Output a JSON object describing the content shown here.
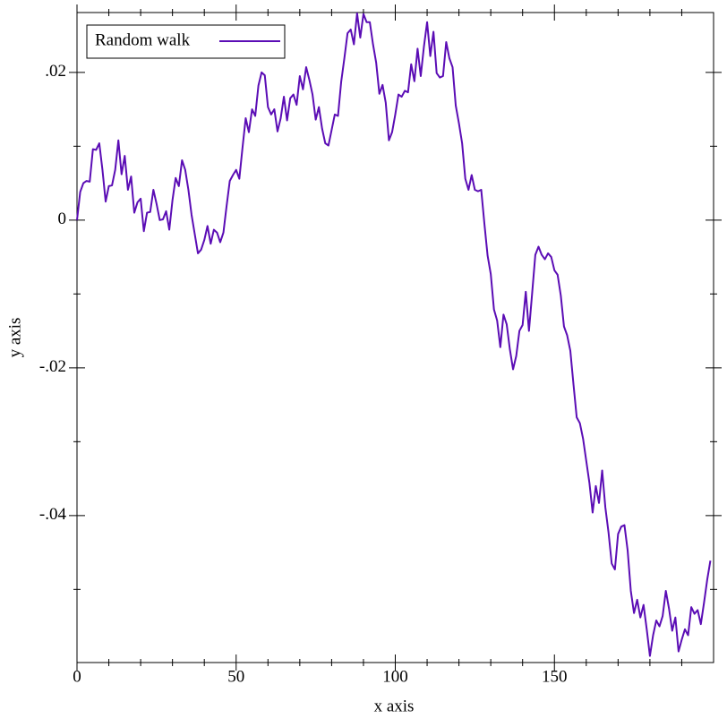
{
  "chart_data": {
    "type": "line",
    "xlabel": "x axis",
    "ylabel": "y axis",
    "legend": "top-left",
    "x": [
      0,
      1,
      2,
      3,
      4,
      5,
      6,
      7,
      8,
      9,
      10,
      11,
      12,
      13,
      14,
      15,
      16,
      17,
      18,
      19,
      20,
      21,
      22,
      23,
      24,
      25,
      26,
      27,
      28,
      29,
      30,
      31,
      32,
      33,
      34,
      35,
      36,
      37,
      38,
      39,
      40,
      41,
      42,
      43,
      44,
      45,
      46,
      47,
      48,
      49,
      50,
      51,
      52,
      53,
      54,
      55,
      56,
      57,
      58,
      59,
      60,
      61,
      62,
      63,
      64,
      65,
      66,
      67,
      68,
      69,
      70,
      71,
      72,
      73,
      74,
      75,
      76,
      77,
      78,
      79,
      80,
      81,
      82,
      83,
      84,
      85,
      86,
      87,
      88,
      89,
      90,
      91,
      92,
      93,
      94,
      95,
      96,
      97,
      98,
      99,
      100,
      101,
      102,
      103,
      104,
      105,
      106,
      107,
      108,
      109,
      110,
      111,
      112,
      113,
      114,
      115,
      116,
      117,
      118,
      119,
      120,
      121,
      122,
      123,
      124,
      125,
      126,
      127,
      128,
      129,
      130,
      131,
      132,
      133,
      134,
      135,
      136,
      137,
      138,
      139,
      140,
      141,
      142,
      143,
      144,
      145,
      146,
      147,
      148,
      149,
      150,
      151,
      152,
      153,
      154,
      155,
      156,
      157,
      158,
      159,
      160,
      161,
      162,
      163,
      164,
      165,
      166,
      167,
      168,
      169,
      170,
      171,
      172,
      173,
      174,
      175,
      176,
      177,
      178,
      179,
      180,
      181,
      182,
      183,
      184,
      185,
      186,
      187,
      188,
      189,
      190,
      191,
      192,
      193,
      194,
      195,
      196,
      197,
      198,
      199
    ],
    "series": [
      {
        "name": "Random walk",
        "color": "#5b0db5",
        "values": [
          0,
          0.0038,
          0.005,
          0.0053,
          0.0052,
          0.0096,
          0.0095,
          0.0104,
          0.0068,
          0.0025,
          0.0046,
          0.0047,
          0.0068,
          0.0108,
          0.0062,
          0.0087,
          0.0041,
          0.0059,
          0.001,
          0.0024,
          0.0029,
          -0.0015,
          0.001,
          0.0011,
          0.0041,
          0.0022,
          0,
          0.0001,
          0.0012,
          -0.0013,
          0.0027,
          0.0057,
          0.0046,
          0.0081,
          0.0068,
          0.0041,
          0.0007,
          -0.0019,
          -0.0045,
          -0.004,
          -0.0027,
          -0.0008,
          -0.0032,
          -0.0013,
          -0.0017,
          -0.003,
          -0.0017,
          0.0019,
          0.0053,
          0.0061,
          0.0068,
          0.0056,
          0.0098,
          0.0138,
          0.0119,
          0.015,
          0.0141,
          0.0182,
          0.02,
          0.0196,
          0.0153,
          0.0143,
          0.015,
          0.012,
          0.0138,
          0.0167,
          0.0135,
          0.0165,
          0.017,
          0.0156,
          0.0195,
          0.0177,
          0.0207,
          0.019,
          0.017,
          0.0136,
          0.0153,
          0.0124,
          0.0104,
          0.0101,
          0.0122,
          0.0143,
          0.0141,
          0.0187,
          0.0219,
          0.0253,
          0.0258,
          0.0238,
          0.028,
          0.0247,
          0.0279,
          0.0268,
          0.0268,
          0.0238,
          0.0213,
          0.0171,
          0.0183,
          0.0159,
          0.0108,
          0.0119,
          0.0143,
          0.017,
          0.0167,
          0.0175,
          0.0173,
          0.0211,
          0.0188,
          0.0232,
          0.0195,
          0.0235,
          0.0268,
          0.0222,
          0.0255,
          0.0199,
          0.0193,
          0.0195,
          0.0241,
          0.0219,
          0.0207,
          0.0155,
          0.0131,
          0.0104,
          0.0056,
          0.0041,
          0.0061,
          0.0041,
          0.0039,
          0.0041,
          -0.0005,
          -0.0048,
          -0.0073,
          -0.0121,
          -0.0136,
          -0.0172,
          -0.0128,
          -0.0141,
          -0.0175,
          -0.0202,
          -0.0184,
          -0.015,
          -0.0142,
          -0.0097,
          -0.015,
          -0.0099,
          -0.0047,
          -0.0036,
          -0.0047,
          -0.0053,
          -0.0045,
          -0.005,
          -0.0068,
          -0.0074,
          -0.0102,
          -0.0144,
          -0.0156,
          -0.0177,
          -0.0223,
          -0.0267,
          -0.0275,
          -0.0296,
          -0.0326,
          -0.0356,
          -0.0396,
          -0.036,
          -0.0383,
          -0.0339,
          -0.0389,
          -0.0423,
          -0.0465,
          -0.0473,
          -0.0425,
          -0.0415,
          -0.0413,
          -0.0447,
          -0.0502,
          -0.0532,
          -0.0514,
          -0.0538,
          -0.0521,
          -0.0554,
          -0.059,
          -0.0562,
          -0.0542,
          -0.055,
          -0.0536,
          -0.0502,
          -0.0526,
          -0.0556,
          -0.0538,
          -0.0584,
          -0.0568,
          -0.0554,
          -0.0562,
          -0.0524,
          -0.0533,
          -0.0528,
          -0.0547,
          -0.0518,
          -0.0487,
          -0.0461
        ]
      }
    ],
    "xlim": [
      0,
      200
    ],
    "ylim": [
      -0.0599,
      0.0281
    ],
    "xticks": [
      0,
      50,
      100,
      150
    ],
    "xminorticks": [
      10,
      20,
      30,
      40,
      60,
      70,
      80,
      90,
      110,
      120,
      130,
      140,
      160,
      170,
      180,
      190
    ],
    "yticks": [
      {
        "value": -0.04,
        "label": "-.04"
      },
      {
        "value": -0.02,
        "label": "-.02"
      },
      0,
      {
        "value": 0.02,
        "label": ".02"
      }
    ],
    "yminorticks": [
      -0.05,
      -0.03,
      -0.01,
      0.01
    ]
  }
}
